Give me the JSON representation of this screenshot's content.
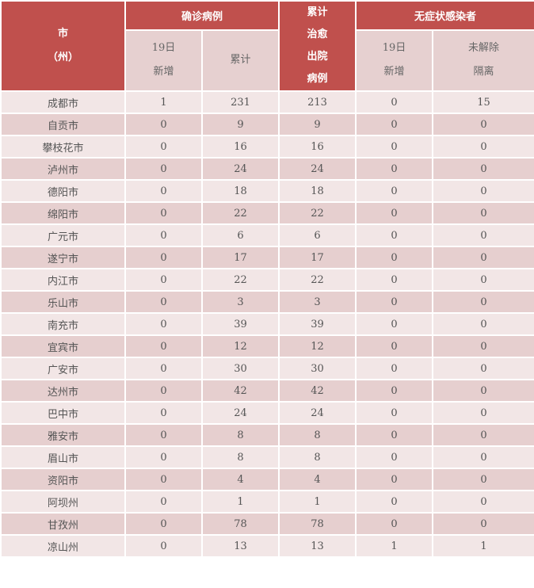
{
  "colors": {
    "header": "#c0504d",
    "subheader": "#e6d0d0",
    "row_light": "#f2e6e6",
    "row_dark": "#e6cfcf"
  },
  "header": {
    "city": [
      "市",
      "（州）"
    ],
    "confirmed": "确诊病例",
    "confirmed_new": [
      "19日",
      "新增"
    ],
    "confirmed_total": "累计",
    "recovered": [
      "累计",
      "治愈",
      "出院",
      "病例"
    ],
    "asymptomatic": "无症状感染者",
    "asym_new": [
      "19日",
      "新增"
    ],
    "asym_unreleased": [
      "未解除",
      "隔离"
    ]
  },
  "rows": [
    [
      "成都市",
      "1",
      "231",
      "213",
      "0",
      "15"
    ],
    [
      "自贡市",
      "0",
      "9",
      "9",
      "0",
      "0"
    ],
    [
      "攀枝花市",
      "0",
      "16",
      "16",
      "0",
      "0"
    ],
    [
      "泸州市",
      "0",
      "24",
      "24",
      "0",
      "0"
    ],
    [
      "德阳市",
      "0",
      "18",
      "18",
      "0",
      "0"
    ],
    [
      "绵阳市",
      "0",
      "22",
      "22",
      "0",
      "0"
    ],
    [
      "广元市",
      "0",
      "6",
      "6",
      "0",
      "0"
    ],
    [
      "遂宁市",
      "0",
      "17",
      "17",
      "0",
      "0"
    ],
    [
      "内江市",
      "0",
      "22",
      "22",
      "0",
      "0"
    ],
    [
      "乐山市",
      "0",
      "3",
      "3",
      "0",
      "0"
    ],
    [
      "南充市",
      "0",
      "39",
      "39",
      "0",
      "0"
    ],
    [
      "宜宾市",
      "0",
      "12",
      "12",
      "0",
      "0"
    ],
    [
      "广安市",
      "0",
      "30",
      "30",
      "0",
      "0"
    ],
    [
      "达州市",
      "0",
      "42",
      "42",
      "0",
      "0"
    ],
    [
      "巴中市",
      "0",
      "24",
      "24",
      "0",
      "0"
    ],
    [
      "雅安市",
      "0",
      "8",
      "8",
      "0",
      "0"
    ],
    [
      "眉山市",
      "0",
      "8",
      "8",
      "0",
      "0"
    ],
    [
      "资阳市",
      "0",
      "4",
      "4",
      "0",
      "0"
    ],
    [
      "阿坝州",
      "0",
      "1",
      "1",
      "0",
      "0"
    ],
    [
      "甘孜州",
      "0",
      "78",
      "78",
      "0",
      "0"
    ],
    [
      "凉山州",
      "0",
      "13",
      "13",
      "1",
      "1"
    ]
  ]
}
